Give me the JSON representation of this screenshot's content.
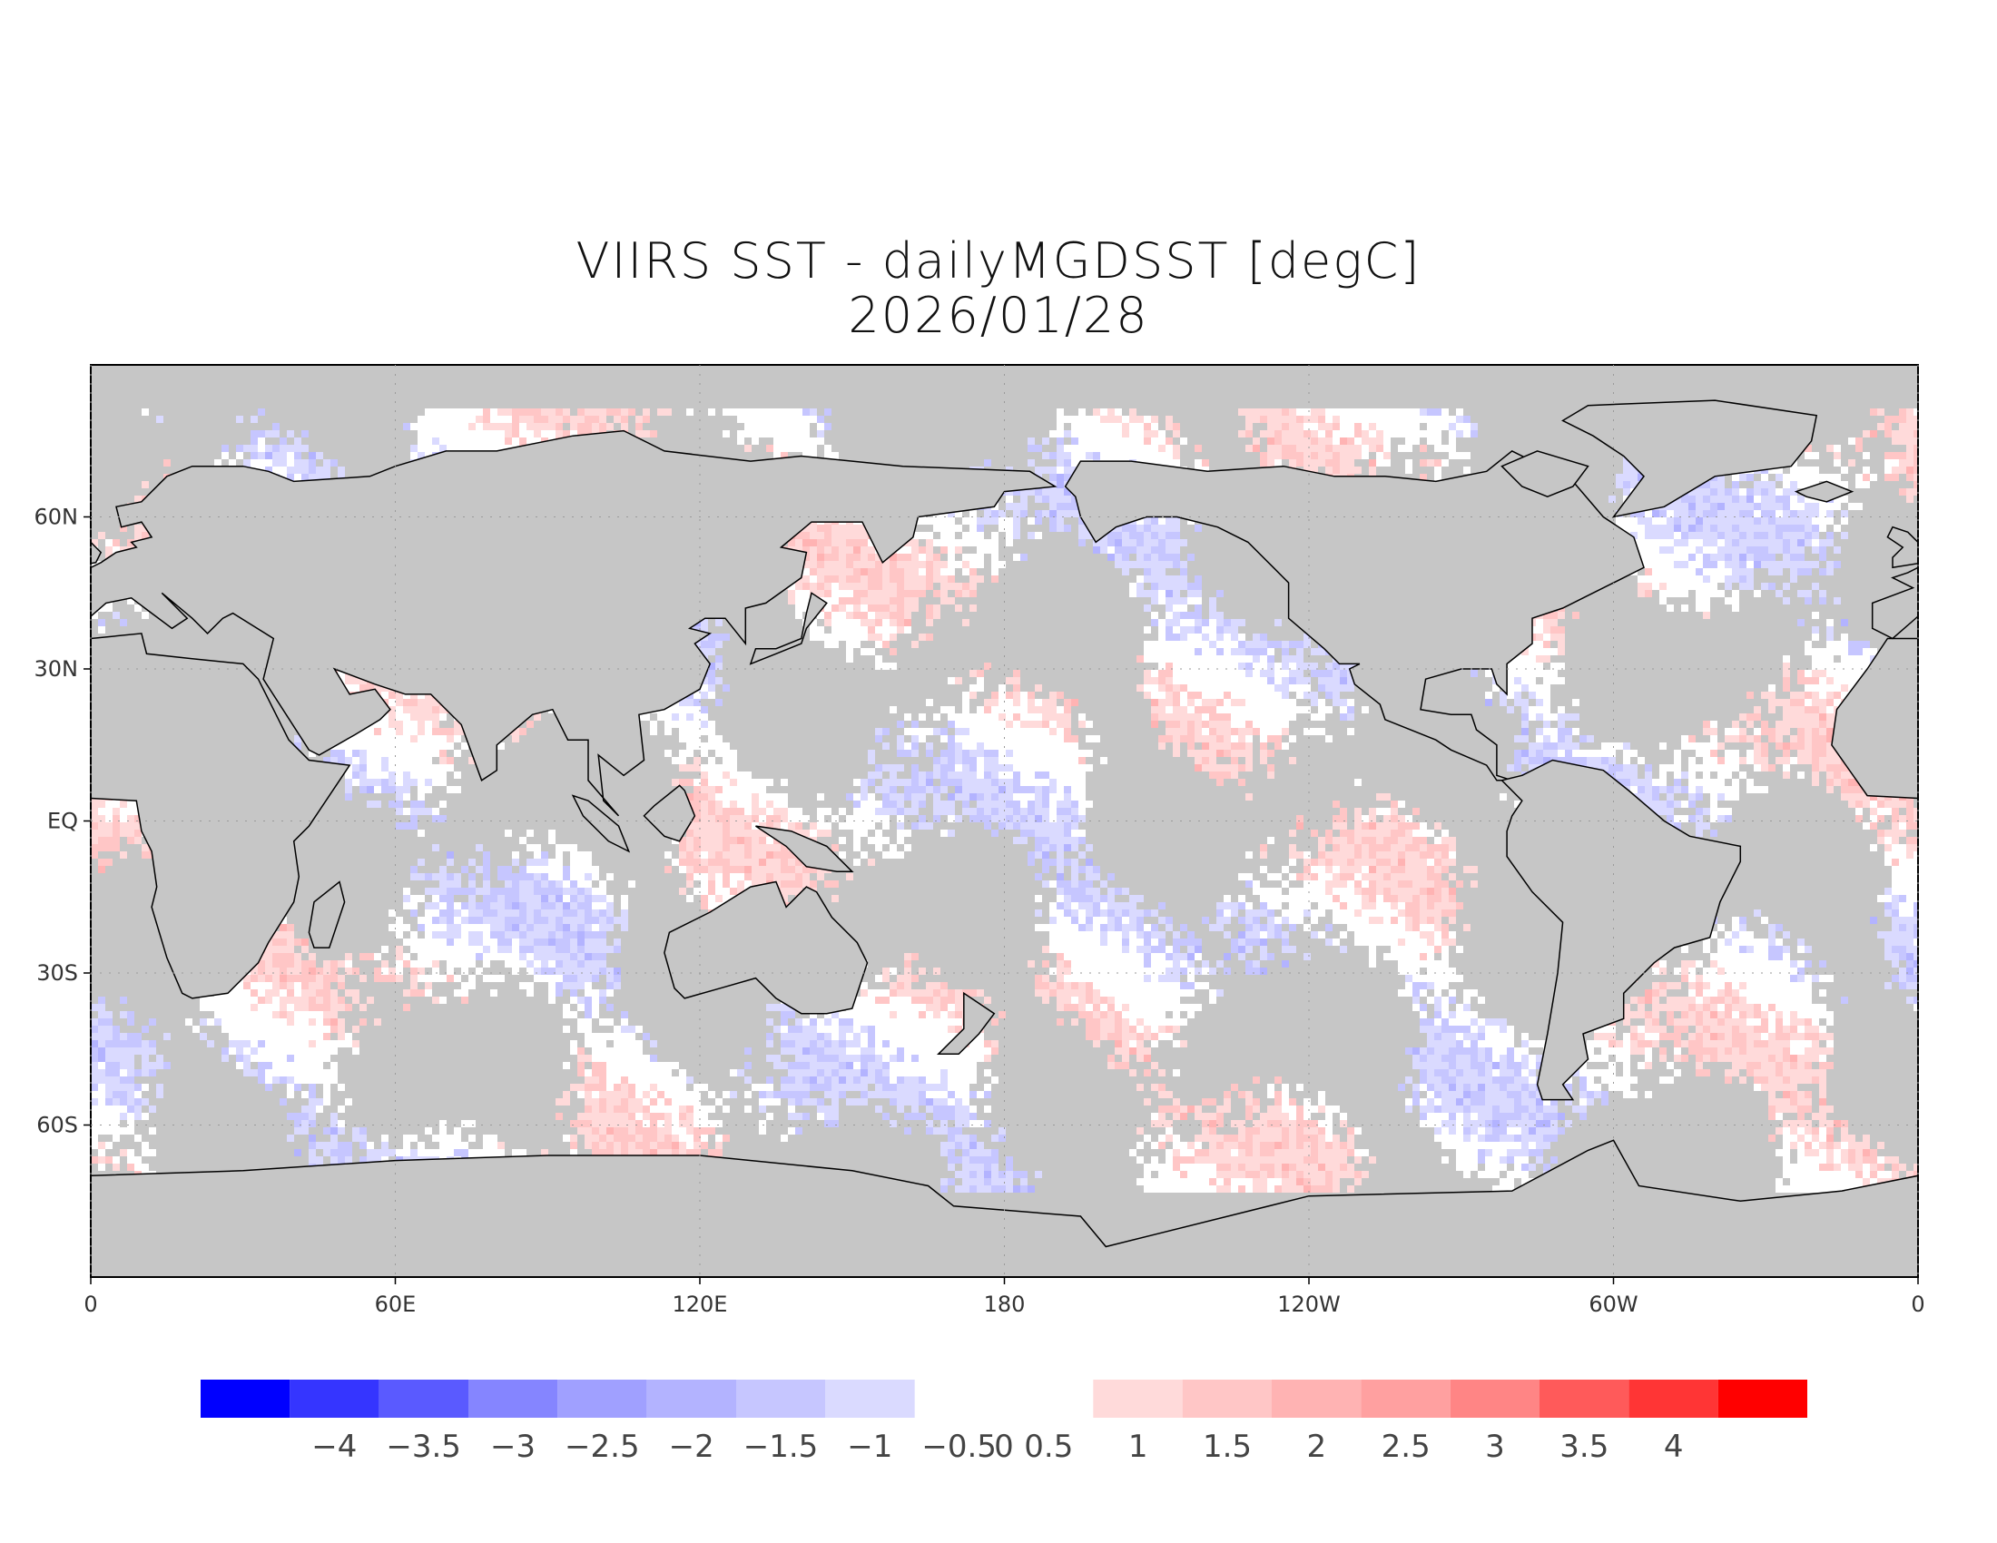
{
  "title": "VIIRS SST - dailyMGDSST [degC]",
  "subtitle": "2026/01/28",
  "map": {
    "projection": "equirectangular",
    "lon_range": [
      0,
      360
    ],
    "lat_range": [
      -90,
      90
    ],
    "colors": {
      "land": "#c6c6c6",
      "no_data": "#c6c6c6",
      "ocean_near_zero": "#ffffff",
      "coast": "#000000",
      "frame": "#000000"
    },
    "lat_ticks": [
      {
        "lat": 60,
        "label": "60N"
      },
      {
        "lat": 30,
        "label": "30N"
      },
      {
        "lat": 0,
        "label": "EQ"
      },
      {
        "lat": -30,
        "label": "30S"
      },
      {
        "lat": -60,
        "label": "60S"
      }
    ],
    "lon_ticks": [
      {
        "lon": 0,
        "label": "0"
      },
      {
        "lon": 60,
        "label": "60E"
      },
      {
        "lon": 120,
        "label": "120E"
      },
      {
        "lon": 180,
        "label": "180"
      },
      {
        "lon": 240,
        "label": "120W"
      },
      {
        "lon": 300,
        "label": "60W"
      },
      {
        "lon": 360,
        "label": "0"
      }
    ]
  },
  "colorbar": {
    "negative": {
      "bins": [
        -4.5,
        -4,
        -3.5,
        -3,
        -2.5,
        -2,
        -1.5,
        -1,
        -0.5
      ],
      "colors": [
        "#0000ff",
        "#3535ff",
        "#5a5aff",
        "#8585ff",
        "#a0a0ff",
        "#b3b3ff",
        "#c6c6ff",
        "#dadaff"
      ]
    },
    "positive": {
      "bins": [
        0.5,
        1,
        1.5,
        2,
        2.5,
        3,
        3.5,
        4,
        4.5
      ],
      "colors": [
        "#ffdada",
        "#ffc6c6",
        "#ffb3b3",
        "#ffa0a0",
        "#ff8585",
        "#ff5a5a",
        "#ff3535",
        "#ff0000"
      ]
    },
    "labels": [
      "-4",
      "-3.5",
      "-3",
      "-2.5",
      "-2",
      "-1.5",
      "-1",
      "-0.5",
      "0",
      "0.5",
      "1",
      "1.5",
      "2",
      "2.5",
      "3",
      "3.5",
      "4"
    ]
  }
}
